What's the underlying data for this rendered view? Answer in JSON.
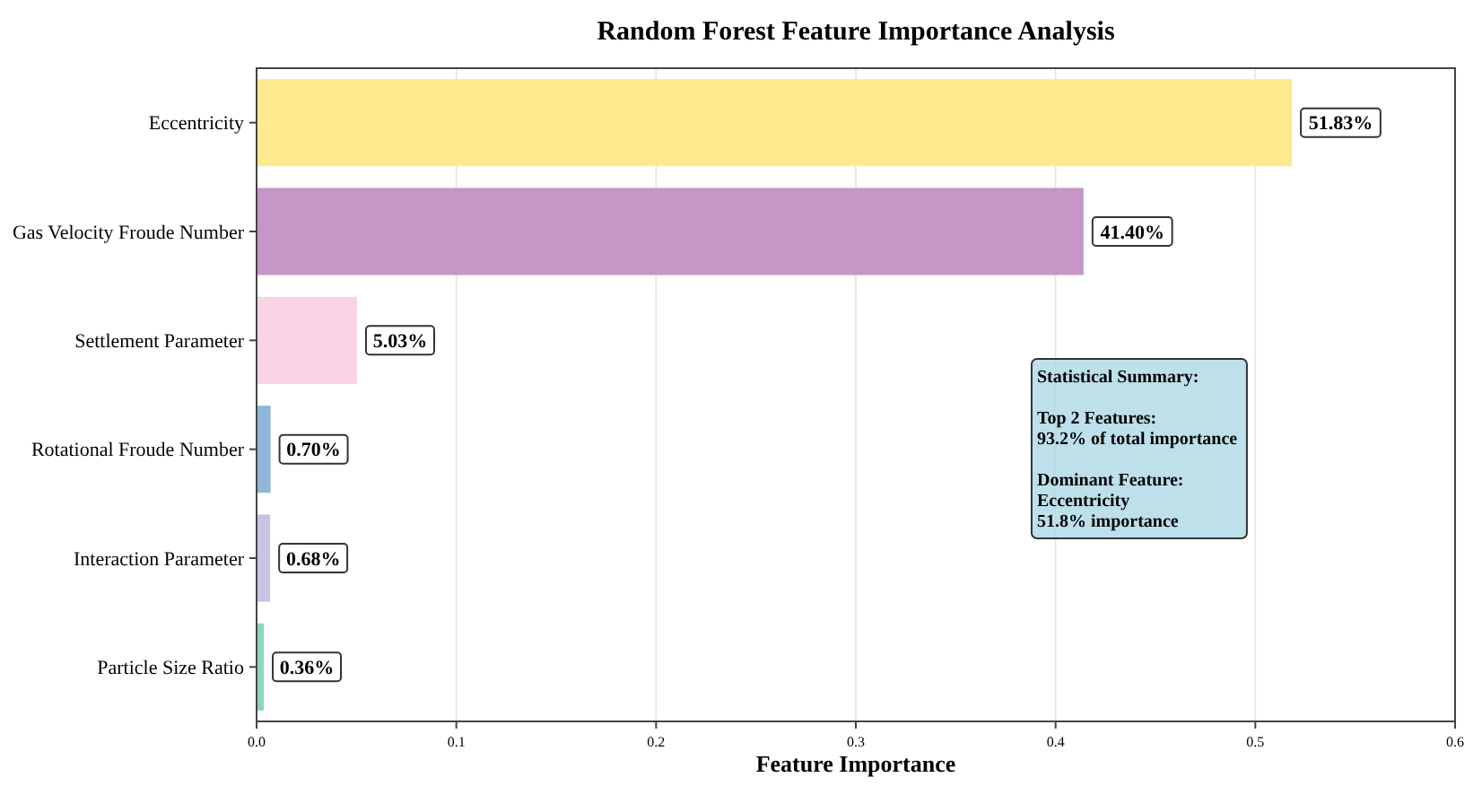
{
  "chart_data": {
    "type": "bar",
    "orientation": "horizontal",
    "title": "Random Forest Feature Importance Analysis",
    "xlabel": "Feature Importance",
    "categories": [
      "Eccentricity",
      "Gas Velocity Froude Number",
      "Settlement Parameter",
      "Rotational Froude Number",
      "Interaction Parameter",
      "Particle Size Ratio"
    ],
    "values": [
      0.5183,
      0.414,
      0.0503,
      0.007,
      0.0068,
      0.0036
    ],
    "colors": [
      "#fdea8c",
      "#c896c6",
      "#fad3e6",
      "#8fb6d6",
      "#c9c3e3",
      "#8fd4c2"
    ],
    "value_labels": [
      "51.83%",
      "41.40%",
      "5.03%",
      "0.70%",
      "0.68%",
      "0.36%"
    ],
    "xlim": [
      0,
      0.6
    ],
    "xticks": [
      {
        "value": 0,
        "label": "0.0"
      },
      0.1,
      0.2,
      0.3,
      0.4,
      0.5,
      0.6
    ],
    "grid": "x",
    "annotations": [
      "Statistical Summary:\n\nTop 2 Features:\n93.2% of total importance\n\nDominant Feature:\nEccentricity\n51.8% importance"
    ]
  }
}
